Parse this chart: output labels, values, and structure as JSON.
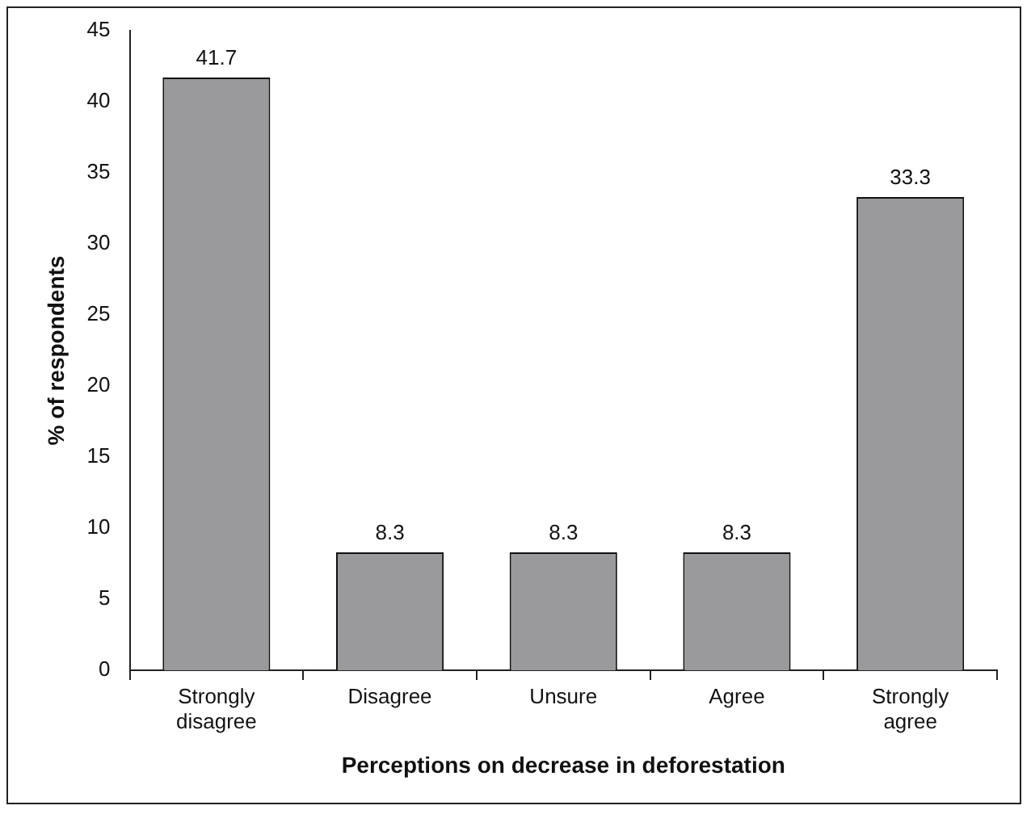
{
  "chart_data": {
    "type": "bar",
    "xlabel": "Perceptions on decrease in deforestation",
    "ylabel": "% of respondents",
    "categories": [
      "Strongly disagree",
      "Disagree",
      "Unsure",
      "Agree",
      "Strongly agree"
    ],
    "values": [
      41.7,
      8.3,
      8.3,
      8.3,
      33.3
    ],
    "color": "#9a9a9c",
    "ylim": [
      0,
      45
    ],
    "yticks": [
      0,
      5,
      10,
      15,
      20,
      25,
      30,
      35,
      40,
      45
    ],
    "grid": false,
    "legend": false,
    "data_labels": true
  }
}
